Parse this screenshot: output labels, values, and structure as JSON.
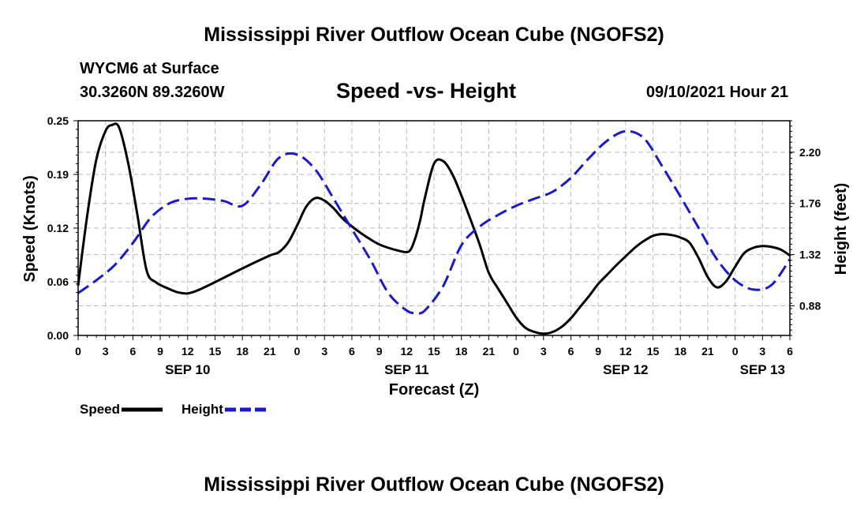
{
  "header": {
    "title": "Mississippi River Outflow Ocean Cube (NGOFS2)",
    "station": "WYCM6 at Surface",
    "coords": "30.3260N  89.3260W",
    "subtitle": "Speed -vs- Height",
    "datetime": "09/10/2021 Hour 21"
  },
  "footer": {
    "title": "Mississippi River Outflow Ocean Cube (NGOFS2)"
  },
  "legend": {
    "speed_label": "Speed",
    "height_label": "Height"
  },
  "colors": {
    "speed": "#000000",
    "height": "#1a1acc",
    "grid": "#bbbbbb"
  },
  "chart_data": {
    "type": "line",
    "title": "Speed -vs- Height",
    "xlabel": "Forecast (Z)",
    "ylabel": "Speed (Knots)",
    "y2label": "Height (feet)",
    "grid": true,
    "legend_position": "bottom-left",
    "xlim": [
      0,
      78
    ],
    "ylim": [
      0,
      0.25
    ],
    "y2lim": [
      0.626,
      2.47
    ],
    "x_ticks": [
      {
        "x": 0,
        "label": "0"
      },
      {
        "x": 3,
        "label": "3"
      },
      {
        "x": 6,
        "label": "6"
      },
      {
        "x": 9,
        "label": "9"
      },
      {
        "x": 12,
        "label": "12"
      },
      {
        "x": 15,
        "label": "15"
      },
      {
        "x": 18,
        "label": "18"
      },
      {
        "x": 21,
        "label": "21"
      },
      {
        "x": 24,
        "label": "0"
      },
      {
        "x": 27,
        "label": "3"
      },
      {
        "x": 30,
        "label": "6"
      },
      {
        "x": 33,
        "label": "9"
      },
      {
        "x": 36,
        "label": "12"
      },
      {
        "x": 39,
        "label": "15"
      },
      {
        "x": 42,
        "label": "18"
      },
      {
        "x": 45,
        "label": "21"
      },
      {
        "x": 48,
        "label": "0"
      },
      {
        "x": 51,
        "label": "3"
      },
      {
        "x": 54,
        "label": "6"
      },
      {
        "x": 57,
        "label": "9"
      },
      {
        "x": 60,
        "label": "12"
      },
      {
        "x": 63,
        "label": "15"
      },
      {
        "x": 66,
        "label": "18"
      },
      {
        "x": 69,
        "label": "21"
      },
      {
        "x": 72,
        "label": "0"
      },
      {
        "x": 75,
        "label": "3"
      },
      {
        "x": 78,
        "label": "6"
      }
    ],
    "date_labels": [
      {
        "x": 12,
        "label": "SEP 10"
      },
      {
        "x": 36,
        "label": "SEP 11"
      },
      {
        "x": 60,
        "label": "SEP 12"
      },
      {
        "x": 75,
        "label": "SEP 13"
      }
    ],
    "y_ticks": [
      "0.00",
      "0.06",
      "0.12",
      "0.19",
      "0.25"
    ],
    "y_tick_values": [
      0.0,
      0.0625,
      0.125,
      0.1875,
      0.25
    ],
    "y2_ticks": [
      "0.88",
      "1.32",
      "1.76",
      "2.20"
    ],
    "y2_tick_values": [
      0.88,
      1.32,
      1.76,
      2.2
    ],
    "series": [
      {
        "name": "Speed",
        "axis": "left",
        "style": "solid",
        "x": [
          0,
          1,
          2,
          3,
          3.7,
          4.5,
          5.5,
          6.5,
          7.5,
          8.5,
          10,
          11,
          12,
          13,
          15,
          18,
          21,
          22,
          23,
          24,
          25,
          26,
          27,
          28,
          29,
          30,
          31,
          32,
          33,
          34,
          35,
          36,
          36.5,
          37,
          37.5,
          38,
          39,
          40,
          41,
          42,
          43,
          44,
          45,
          46,
          47,
          48,
          49,
          50,
          51,
          52,
          53,
          54,
          55,
          56,
          57,
          58,
          59,
          60,
          61,
          62,
          63,
          64,
          65,
          66,
          67,
          68,
          69,
          70,
          71,
          72,
          73,
          74,
          75,
          76,
          77,
          78
        ],
        "values": [
          0.058,
          0.14,
          0.205,
          0.238,
          0.245,
          0.242,
          0.2,
          0.14,
          0.076,
          0.062,
          0.054,
          0.05,
          0.049,
          0.052,
          0.062,
          0.078,
          0.093,
          0.097,
          0.108,
          0.128,
          0.15,
          0.16,
          0.157,
          0.148,
          0.136,
          0.127,
          0.119,
          0.112,
          0.106,
          0.102,
          0.099,
          0.097,
          0.101,
          0.115,
          0.135,
          0.16,
          0.2,
          0.203,
          0.188,
          0.163,
          0.135,
          0.106,
          0.073,
          0.055,
          0.038,
          0.021,
          0.009,
          0.004,
          0.002,
          0.004,
          0.01,
          0.02,
          0.033,
          0.046,
          0.06,
          0.071,
          0.082,
          0.092,
          0.102,
          0.11,
          0.116,
          0.118,
          0.117,
          0.114,
          0.108,
          0.09,
          0.068,
          0.056,
          0.063,
          0.08,
          0.096,
          0.102,
          0.104,
          0.103,
          0.1,
          0.093
        ]
      },
      {
        "name": "Height",
        "axis": "right",
        "style": "dashed",
        "x": [
          0,
          2,
          4,
          6,
          8,
          10,
          12,
          14,
          16,
          18,
          20,
          22,
          24,
          26,
          28,
          30,
          32,
          34,
          36,
          37,
          38,
          40,
          42,
          44,
          46,
          48,
          50,
          52,
          54,
          56,
          58,
          60,
          62,
          64,
          66,
          68,
          70,
          72,
          74,
          76,
          78
        ],
        "values": [
          0.99,
          1.1,
          1.23,
          1.42,
          1.64,
          1.76,
          1.8,
          1.8,
          1.78,
          1.74,
          1.92,
          2.15,
          2.18,
          2.05,
          1.8,
          1.54,
          1.28,
          0.99,
          0.84,
          0.82,
          0.84,
          1.05,
          1.4,
          1.56,
          1.66,
          1.74,
          1.8,
          1.86,
          1.98,
          2.15,
          2.3,
          2.38,
          2.32,
          2.08,
          1.82,
          1.55,
          1.28,
          1.1,
          1.02,
          1.06,
          1.28
        ]
      }
    ]
  }
}
